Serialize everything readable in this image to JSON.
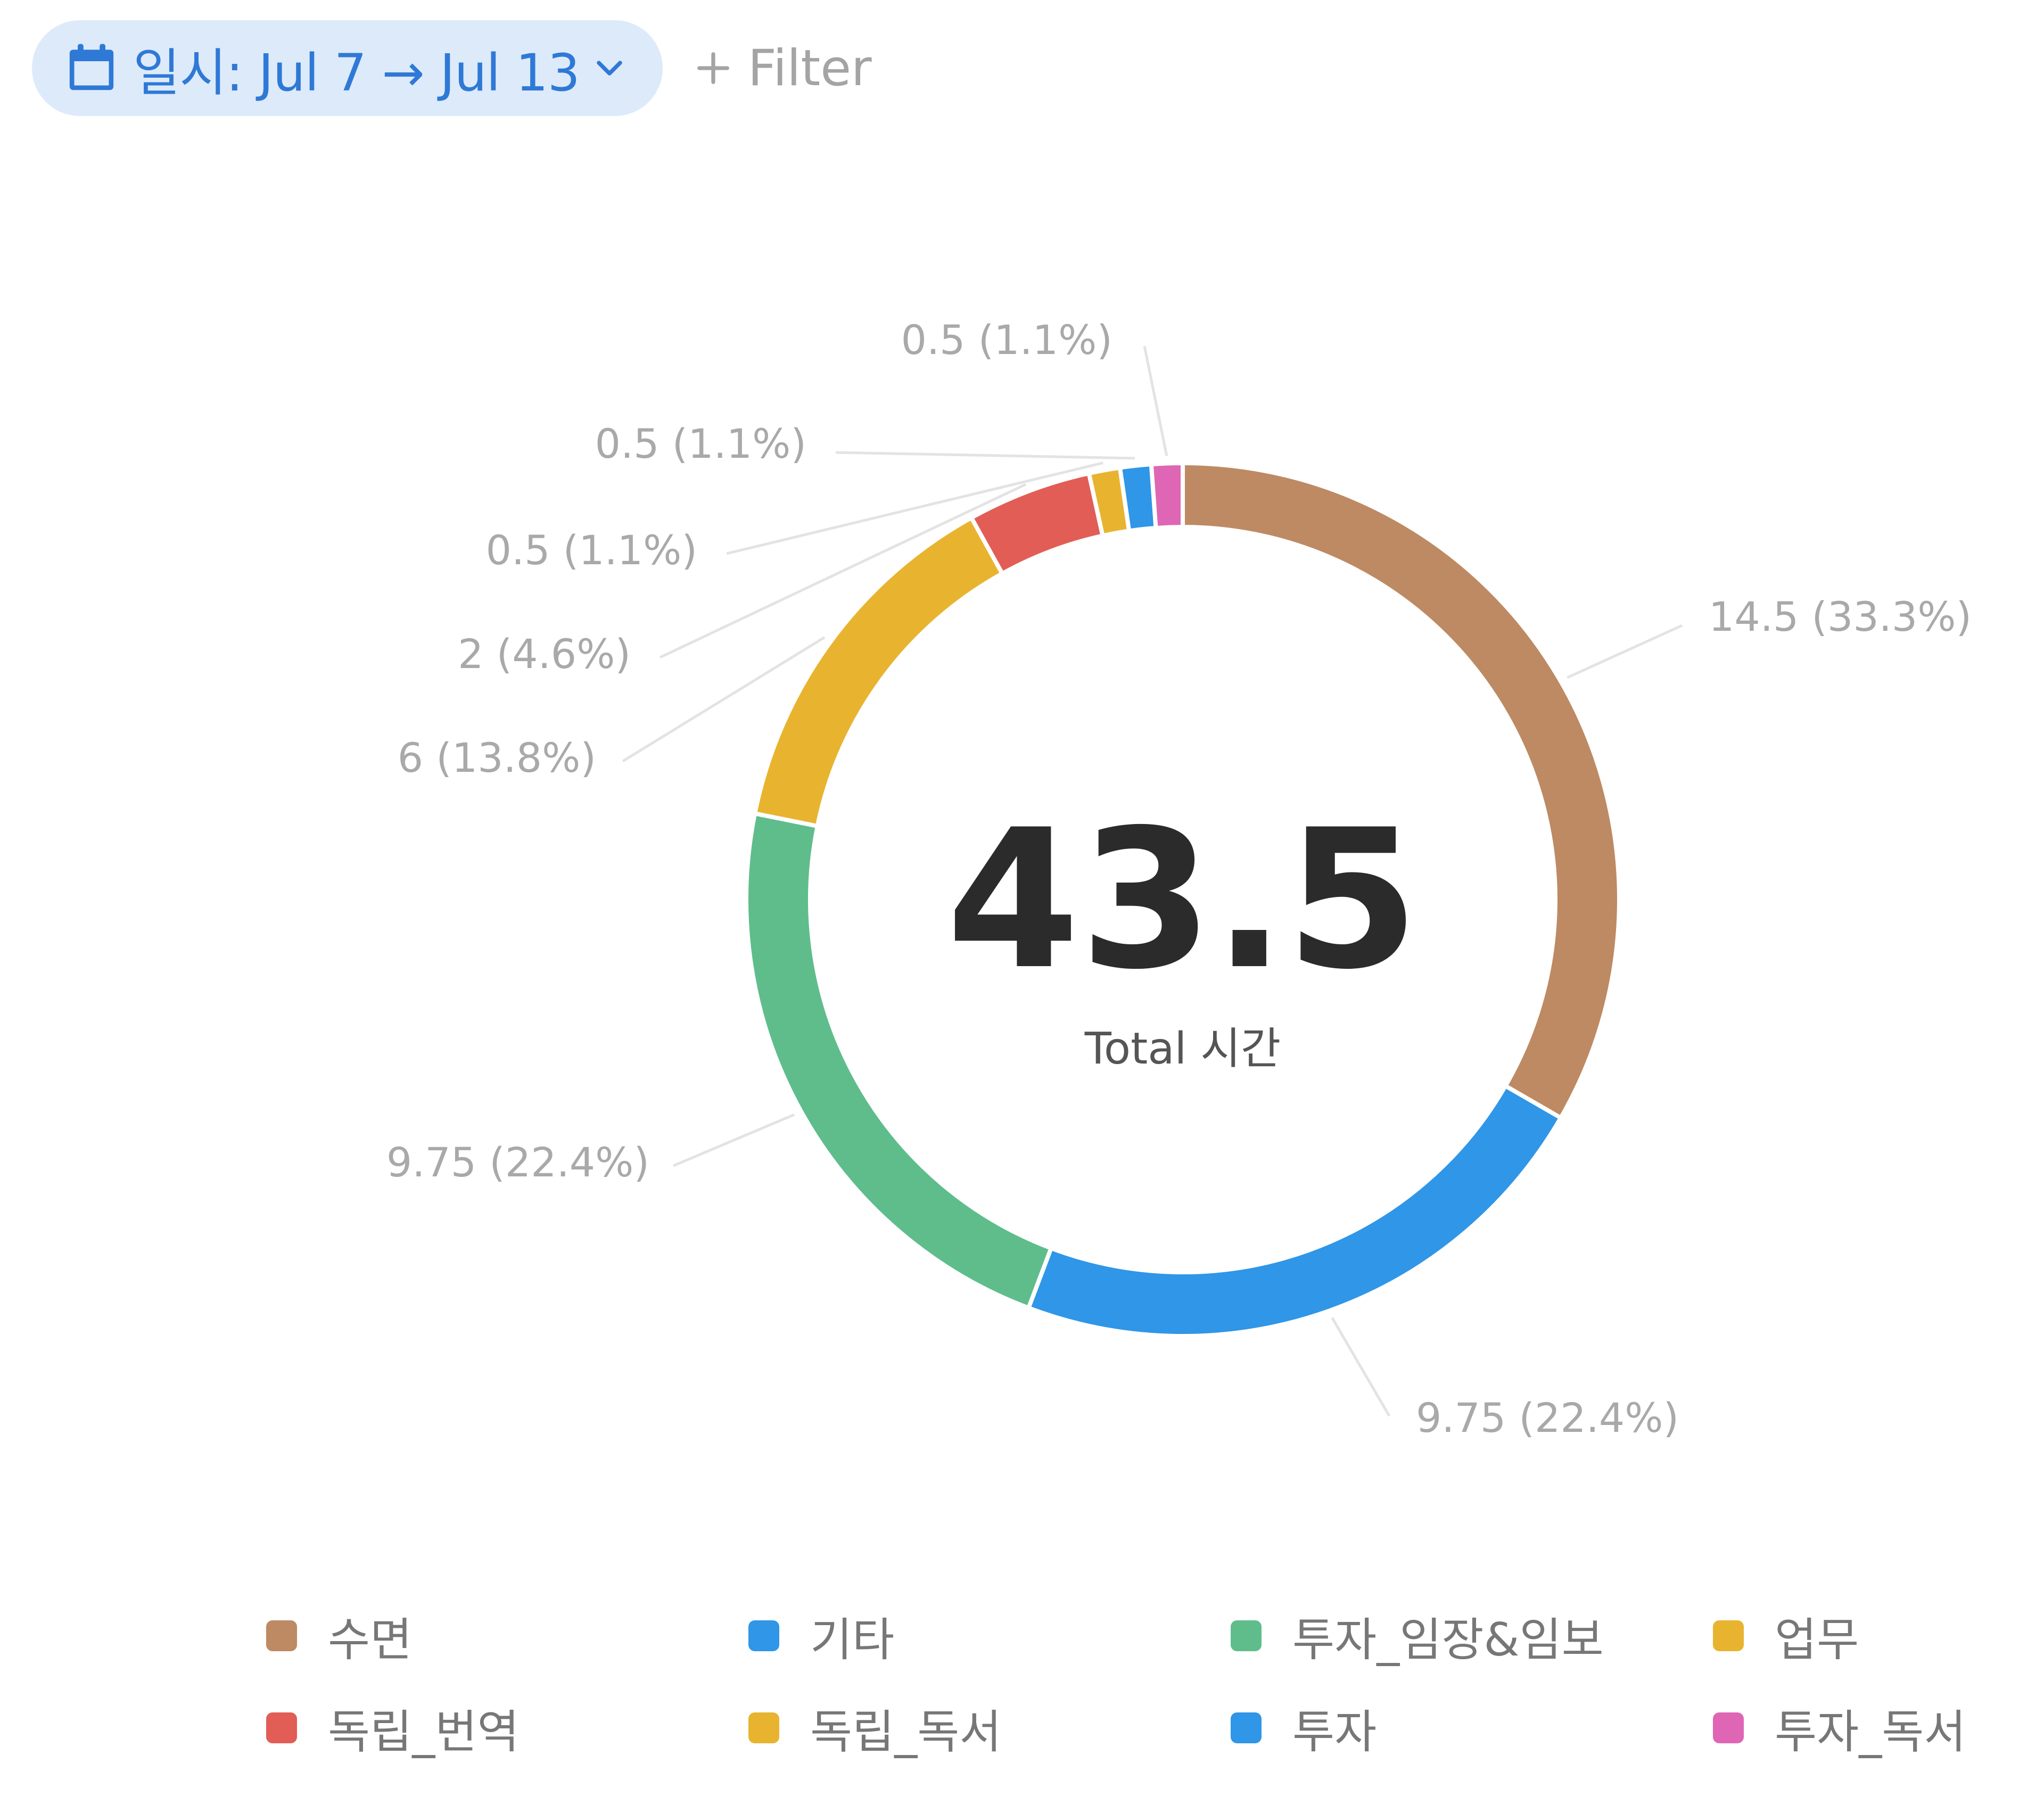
{
  "filter_bar": {
    "date_filter": {
      "label": "일시: Jul 7 → Jul 13",
      "icon": "calendar-icon",
      "chevron_icon": "chevron-down-icon"
    },
    "add_filter": {
      "label": "Filter",
      "icon": "plus-icon"
    }
  },
  "chart_data": {
    "type": "pie",
    "variant": "donut",
    "total": {
      "value": "43.5",
      "label": "Total 시간"
    },
    "slices": [
      {
        "category": "수면",
        "value": 14.5,
        "label": "14.5 (33.3%)",
        "color": "#bd8a63"
      },
      {
        "category": "기타",
        "value": 9.75,
        "label": "9.75 (22.4%)",
        "color": "#2f96e8"
      },
      {
        "category": "투자_임장&임보",
        "value": 9.75,
        "label": "9.75 (22.4%)",
        "color": "#5fbd8c"
      },
      {
        "category": "업무",
        "value": 6,
        "label": "6 (13.8%)",
        "color": "#e8b430"
      },
      {
        "category": "독립_번역",
        "value": 2,
        "label": "2 (4.6%)",
        "color": "#e25d55"
      },
      {
        "category": "독립_독서",
        "value": 0.5,
        "label": "0.5 (1.1%)",
        "color": "#e8b430"
      },
      {
        "category": "투자",
        "value": 0.5,
        "label": "0.5 (1.1%)",
        "color": "#2f96e8"
      },
      {
        "category": "투자_독서",
        "value": 0.5,
        "label": "0.5 (1.1%)",
        "color": "#df66b4"
      }
    ],
    "legend": {
      "placement": "bottom",
      "entries": [
        {
          "name": "수면",
          "color": "#bd8a63"
        },
        {
          "name": "기타",
          "color": "#2f96e8"
        },
        {
          "name": "투자_임장&임보",
          "color": "#5fbd8c"
        },
        {
          "name": "업무",
          "color": "#e8b430"
        },
        {
          "name": "독립_번역",
          "color": "#e25d55"
        },
        {
          "name": "독립_독서",
          "color": "#e8b430"
        },
        {
          "name": "투자",
          "color": "#2f96e8"
        },
        {
          "name": "투자_독서",
          "color": "#df66b4"
        }
      ]
    }
  }
}
